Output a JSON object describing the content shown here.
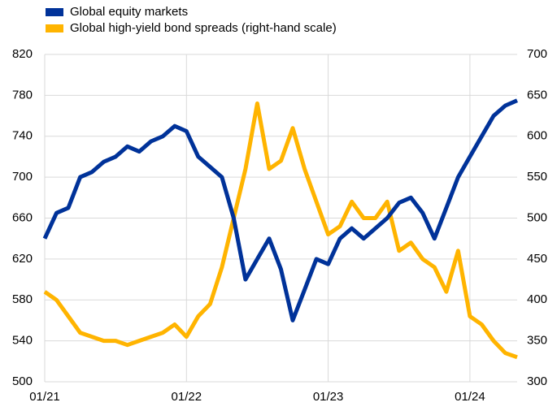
{
  "chart_data": {
    "type": "line",
    "categories": [
      "01/21",
      null,
      null,
      null,
      null,
      null,
      null,
      null,
      null,
      null,
      null,
      null,
      "01/22",
      null,
      null,
      null,
      null,
      null,
      null,
      null,
      null,
      null,
      null,
      null,
      "01/23",
      null,
      null,
      null,
      null,
      null,
      null,
      null,
      null,
      null,
      null,
      null,
      "01/24",
      null,
      null,
      null,
      null
    ],
    "series": [
      {
        "name": "Global equity markets",
        "color": "#003299",
        "values": [
          640,
          665,
          670,
          700,
          705,
          715,
          720,
          730,
          725,
          735,
          740,
          750,
          745,
          720,
          710,
          700,
          660,
          600,
          620,
          640,
          610,
          560,
          590,
          620,
          615,
          640,
          650,
          640,
          650,
          660,
          675,
          680,
          665,
          640,
          670,
          700,
          720,
          740,
          760,
          770,
          775
        ]
      },
      {
        "name": "Global high-yield bond spreads (right-hand scale)",
        "color": "#ffb400",
        "axis": "y2",
        "values": [
          410,
          400,
          380,
          360,
          355,
          350,
          350,
          345,
          350,
          355,
          360,
          370,
          355,
          380,
          395,
          440,
          500,
          560,
          640,
          560,
          570,
          610,
          560,
          520,
          480,
          490,
          520,
          500,
          500,
          520,
          460,
          470,
          450,
          440,
          410,
          460,
          380,
          370,
          350,
          335,
          330
        ]
      }
    ],
    "ylim": [
      500,
      820
    ],
    "yticks": [
      500,
      540,
      580,
      620,
      660,
      700,
      740,
      780,
      820
    ],
    "y2lim": [
      300,
      700
    ],
    "y2ticks": [
      300,
      350,
      400,
      450,
      500,
      550,
      600,
      650,
      700
    ],
    "grid": true
  }
}
